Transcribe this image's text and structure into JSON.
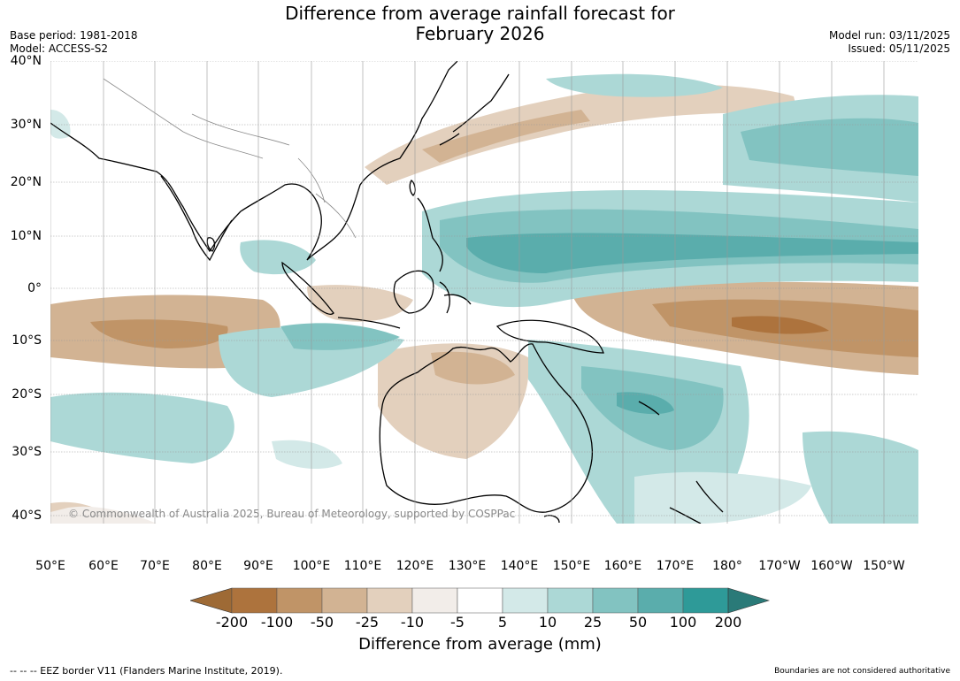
{
  "title_line1": "Difference from average rainfall forecast for",
  "title_line2": "February 2026",
  "meta_left": {
    "base_period": "Base period: 1981-2018",
    "model": "Model: ACCESS-S2"
  },
  "meta_right": {
    "model_run": "Model run: 03/11/2025",
    "issued": "Issued: 05/11/2025"
  },
  "lat_labels": [
    "40°N",
    "30°N",
    "20°N",
    "10°N",
    "0°",
    "10°S",
    "20°S",
    "30°S",
    "40°S"
  ],
  "lon_labels": [
    "50°E",
    "60°E",
    "70°E",
    "80°E",
    "90°E",
    "100°E",
    "110°E",
    "120°E",
    "130°E",
    "140°E",
    "150°E",
    "160°E",
    "170°E",
    "180°",
    "170°W",
    "160°W",
    "150°W"
  ],
  "copyright": "© Commonwealth of Australia 2025, Bureau of Meteorology, supported by COSPPac",
  "colorbar": {
    "ticks": [
      "-200",
      "-100",
      "-50",
      "-25",
      "-10",
      "-5",
      "5",
      "10",
      "25",
      "50",
      "100",
      "200"
    ],
    "colors": [
      "#9e6a35",
      "#ad733d",
      "#c09467",
      "#d2b393",
      "#e3d0bd",
      "#f2ede9",
      "#ffffff",
      "#d3e9e8",
      "#acd8d6",
      "#82c3c1",
      "#5aadac",
      "#2e9a98",
      "#2a7a78"
    ],
    "label": "Difference from average (mm)"
  },
  "footer_left": "--  --  -- EEZ border V11 (Flanders Marine Institute, 2019).",
  "footer_right": "Boundaries are not considered authoritative"
}
